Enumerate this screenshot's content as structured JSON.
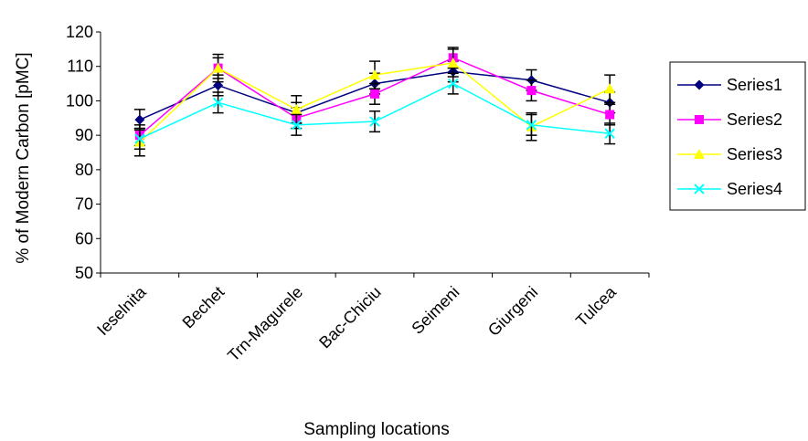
{
  "chart_data": {
    "type": "line",
    "title": "",
    "xlabel": "Sampling locations",
    "ylabel": "% of Modern Carbon [pMC]",
    "ylim": [
      50,
      120
    ],
    "yticks": [
      "50",
      "60",
      "70",
      "80",
      "90",
      "100",
      "110",
      "120"
    ],
    "categories": [
      "Ieselnita",
      "Bechet",
      "Trn-Magurele",
      "Bac-Chiciu",
      "Seimeni",
      "Giurgeni",
      "Tulcea"
    ],
    "grid": false,
    "legend_position": "right",
    "error_bars": true,
    "series": [
      {
        "name": "Series1",
        "color": "#000080",
        "marker": "diamond",
        "values": [
          94.5,
          104.5,
          96.5,
          105,
          108.5,
          106,
          99.5
        ],
        "error": [
          3,
          3,
          3,
          3,
          3,
          3,
          3
        ]
      },
      {
        "name": "Series2",
        "color": "#ff00ff",
        "marker": "square",
        "values": [
          90,
          109.5,
          95,
          102,
          112.5,
          103,
          96
        ],
        "error": [
          3,
          3,
          3,
          3,
          3,
          3,
          3
        ]
      },
      {
        "name": "Series3",
        "color": "#ffff00",
        "marker": "triangle",
        "values": [
          88,
          109.5,
          97.5,
          107.5,
          111,
          92.5,
          103.5
        ],
        "error": [
          4,
          4,
          4,
          4,
          4,
          4,
          4
        ]
      },
      {
        "name": "Series4",
        "color": "#00ffff",
        "marker": "x",
        "values": [
          89,
          99.5,
          93,
          94,
          105,
          93,
          90.5
        ],
        "error": [
          3,
          3,
          3,
          3,
          3,
          3,
          3
        ]
      }
    ]
  }
}
